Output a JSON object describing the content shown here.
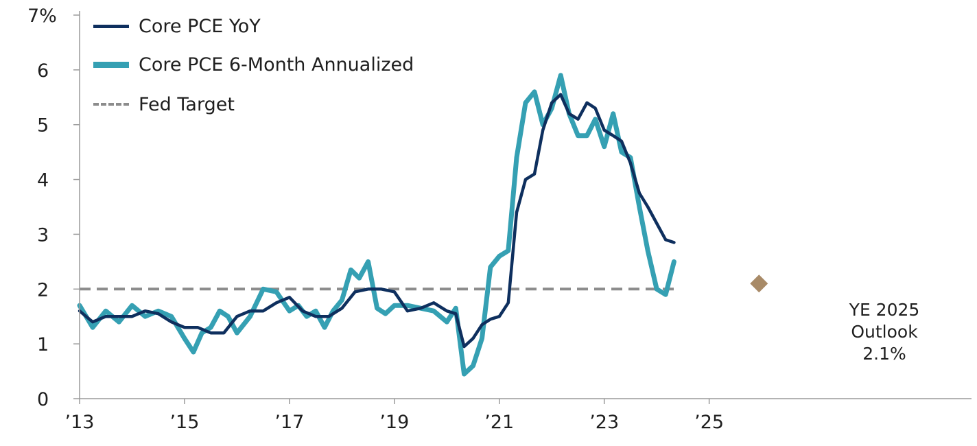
{
  "chart_data": {
    "type": "line",
    "ylim": [
      0,
      7
    ],
    "y_ticks": [
      {
        "value": 0,
        "label": "0"
      },
      {
        "value": 1,
        "label": "1"
      },
      {
        "value": 2,
        "label": "2"
      },
      {
        "value": 3,
        "label": "3"
      },
      {
        "value": 4,
        "label": "4"
      },
      {
        "value": 5,
        "label": "5"
      },
      {
        "value": 6,
        "label": "6"
      },
      {
        "value": 7,
        "label": "7%"
      }
    ],
    "xlim": [
      2013,
      2030
    ],
    "x_ticks": [
      {
        "value": 2013,
        "label": "’13"
      },
      {
        "value": 2015,
        "label": "’15"
      },
      {
        "value": 2017,
        "label": "’17"
      },
      {
        "value": 2019,
        "label": "’19"
      },
      {
        "value": 2021,
        "label": "’21"
      },
      {
        "value": 2023,
        "label": "’23"
      },
      {
        "value": 2025,
        "label": "’25"
      }
    ],
    "legend": "top-left",
    "series": [
      {
        "name": "Core PCE YoY",
        "color": "#0e2f5e",
        "x": [
          2013.0,
          2013.25,
          2013.5,
          2013.75,
          2014.0,
          2014.25,
          2014.5,
          2014.75,
          2015.0,
          2015.25,
          2015.5,
          2015.75,
          2016.0,
          2016.25,
          2016.5,
          2016.75,
          2017.0,
          2017.25,
          2017.5,
          2017.75,
          2018.0,
          2018.25,
          2018.5,
          2018.75,
          2019.0,
          2019.25,
          2019.5,
          2019.75,
          2020.0,
          2020.17,
          2020.33,
          2020.5,
          2020.67,
          2020.83,
          2021.0,
          2021.17,
          2021.33,
          2021.5,
          2021.67,
          2021.83,
          2022.0,
          2022.17,
          2022.33,
          2022.5,
          2022.67,
          2022.83,
          2023.0,
          2023.17,
          2023.33,
          2023.5,
          2023.67,
          2023.83,
          2024.0,
          2024.17,
          2024.33
        ],
        "values": [
          1.6,
          1.4,
          1.5,
          1.5,
          1.5,
          1.6,
          1.55,
          1.4,
          1.3,
          1.3,
          1.2,
          1.2,
          1.5,
          1.6,
          1.6,
          1.75,
          1.85,
          1.6,
          1.5,
          1.5,
          1.65,
          1.95,
          2.0,
          2.0,
          1.95,
          1.6,
          1.65,
          1.75,
          1.6,
          1.55,
          0.95,
          1.1,
          1.35,
          1.45,
          1.5,
          1.75,
          3.4,
          4.0,
          4.1,
          4.9,
          5.4,
          5.55,
          5.2,
          5.1,
          5.4,
          5.3,
          4.9,
          4.8,
          4.7,
          4.3,
          3.75,
          3.5,
          3.2,
          2.9,
          2.85
        ]
      },
      {
        "name": "Core PCE 6-Month Annualized",
        "color": "#35a0b3",
        "x": [
          2013.0,
          2013.25,
          2013.5,
          2013.75,
          2014.0,
          2014.25,
          2014.5,
          2014.75,
          2015.0,
          2015.17,
          2015.33,
          2015.5,
          2015.67,
          2015.83,
          2016.0,
          2016.25,
          2016.5,
          2016.75,
          2017.0,
          2017.17,
          2017.33,
          2017.5,
          2017.67,
          2017.83,
          2018.0,
          2018.17,
          2018.33,
          2018.5,
          2018.67,
          2018.83,
          2019.0,
          2019.25,
          2019.5,
          2019.75,
          2020.0,
          2020.17,
          2020.33,
          2020.5,
          2020.67,
          2020.83,
          2021.0,
          2021.17,
          2021.33,
          2021.5,
          2021.67,
          2021.83,
          2022.0,
          2022.17,
          2022.33,
          2022.5,
          2022.67,
          2022.83,
          2023.0,
          2023.17,
          2023.33,
          2023.5,
          2023.67,
          2023.83,
          2024.0,
          2024.17,
          2024.33
        ],
        "values": [
          1.7,
          1.3,
          1.6,
          1.4,
          1.7,
          1.5,
          1.6,
          1.5,
          1.1,
          0.85,
          1.2,
          1.3,
          1.6,
          1.5,
          1.2,
          1.5,
          2.0,
          1.95,
          1.6,
          1.7,
          1.5,
          1.6,
          1.3,
          1.6,
          1.8,
          2.35,
          2.2,
          2.5,
          1.65,
          1.55,
          1.7,
          1.7,
          1.65,
          1.6,
          1.4,
          1.65,
          0.45,
          0.6,
          1.1,
          2.4,
          2.6,
          2.7,
          4.4,
          5.4,
          5.6,
          5.0,
          5.3,
          5.9,
          5.2,
          4.8,
          4.8,
          5.1,
          4.6,
          5.2,
          4.5,
          4.4,
          3.5,
          2.7,
          2.0,
          1.9,
          2.5
        ]
      }
    ],
    "reference_line": {
      "label": "Fed Target",
      "value": 2.0,
      "color": "#8c8c8c"
    },
    "outlook_point": {
      "x": 2025.95,
      "value": 2.1,
      "color": "#a88a67"
    },
    "annotation_lines": [
      "YE 2025",
      "Outlook",
      "2.1%"
    ]
  }
}
